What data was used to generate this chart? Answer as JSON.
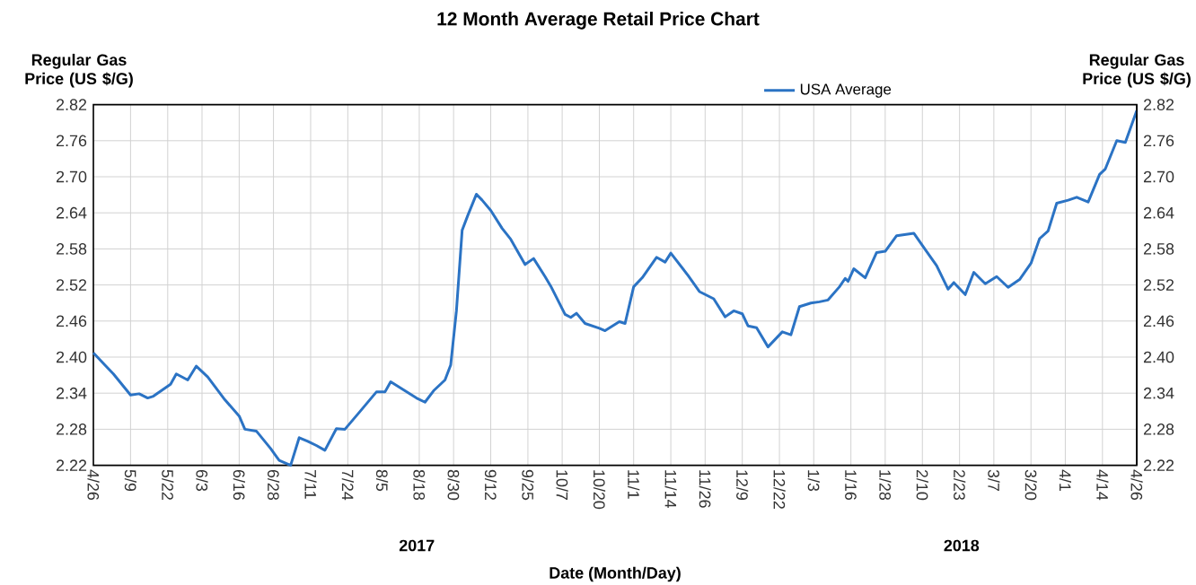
{
  "chart_data": {
    "type": "line",
    "title": "12 Month Average Retail Price Chart",
    "xlabel": "Date (Month/Day)",
    "ylabel": "Regular Gas Price (US $/G)",
    "y2label": "Regular Gas Price (US $/G)",
    "annotations": [
      "2017",
      "2018"
    ],
    "x": [
      "2017-04-26",
      "2017-04-30",
      "2017-05-03",
      "2017-05-09",
      "2017-05-12",
      "2017-05-15",
      "2017-05-17",
      "2017-05-23",
      "2017-05-25",
      "2017-05-29",
      "2017-06-01",
      "2017-06-05",
      "2017-06-11",
      "2017-06-16",
      "2017-06-18",
      "2017-06-22",
      "2017-06-27",
      "2017-06-30",
      "2017-07-04",
      "2017-07-07",
      "2017-07-10",
      "2017-07-13",
      "2017-07-16",
      "2017-07-20",
      "2017-07-23",
      "2017-07-28",
      "2017-08-03",
      "2017-08-06",
      "2017-08-08",
      "2017-08-17",
      "2017-08-20",
      "2017-08-23",
      "2017-08-27",
      "2017-08-29",
      "2017-08-31",
      "2017-09-02",
      "2017-09-04",
      "2017-09-07",
      "2017-09-09",
      "2017-09-12",
      "2017-09-16",
      "2017-09-19",
      "2017-09-24",
      "2017-09-27",
      "2017-10-01",
      "2017-10-03",
      "2017-10-08",
      "2017-10-10",
      "2017-10-12",
      "2017-10-15",
      "2017-10-20",
      "2017-10-22",
      "2017-10-27",
      "2017-10-29",
      "2017-11-01",
      "2017-11-04",
      "2017-11-09",
      "2017-11-12",
      "2017-11-14",
      "2017-11-20",
      "2017-11-24",
      "2017-11-29",
      "2017-12-03",
      "2017-12-06",
      "2017-12-09",
      "2017-12-11",
      "2017-12-14",
      "2017-12-18",
      "2017-12-23",
      "2017-12-26",
      "2017-12-29",
      "2018-01-02",
      "2018-01-05",
      "2018-01-08",
      "2018-01-12",
      "2018-01-14",
      "2018-01-15",
      "2018-01-17",
      "2018-01-21",
      "2018-01-25",
      "2018-01-28",
      "2018-02-01",
      "2018-02-07",
      "2018-02-11",
      "2018-02-15",
      "2018-02-19",
      "2018-02-21",
      "2018-02-25",
      "2018-02-28",
      "2018-03-04",
      "2018-03-08",
      "2018-03-12",
      "2018-03-16",
      "2018-03-20",
      "2018-03-23",
      "2018-03-26",
      "2018-03-29",
      "2018-04-02",
      "2018-04-05",
      "2018-04-09",
      "2018-04-13",
      "2018-04-15",
      "2018-04-19",
      "2018-04-22",
      "2018-04-26"
    ],
    "series": [
      {
        "name": "USA Average",
        "color": "#2b73c4",
        "values": [
          2.407,
          2.387,
          2.372,
          2.337,
          2.339,
          2.332,
          2.335,
          2.355,
          2.372,
          2.362,
          2.385,
          2.367,
          2.329,
          2.302,
          2.28,
          2.277,
          2.248,
          2.228,
          2.22,
          2.266,
          2.26,
          2.253,
          2.245,
          2.281,
          2.28,
          2.308,
          2.342,
          2.342,
          2.359,
          2.332,
          2.325,
          2.344,
          2.362,
          2.387,
          2.477,
          2.611,
          2.636,
          2.671,
          2.661,
          2.644,
          2.614,
          2.596,
          2.554,
          2.564,
          2.534,
          2.518,
          2.471,
          2.466,
          2.473,
          2.456,
          2.448,
          2.444,
          2.459,
          2.456,
          2.517,
          2.532,
          2.566,
          2.558,
          2.573,
          2.536,
          2.509,
          2.497,
          2.467,
          2.477,
          2.472,
          2.452,
          2.449,
          2.417,
          2.442,
          2.437,
          2.484,
          2.49,
          2.492,
          2.495,
          2.517,
          2.531,
          2.526,
          2.547,
          2.532,
          2.574,
          2.576,
          2.602,
          2.606,
          2.579,
          2.552,
          2.513,
          2.524,
          2.504,
          2.541,
          2.522,
          2.534,
          2.516,
          2.529,
          2.556,
          2.597,
          2.61,
          2.656,
          2.661,
          2.666,
          2.658,
          2.704,
          2.713,
          2.76,
          2.757,
          2.81
        ]
      }
    ],
    "xlim": [
      "2017-04-26",
      "2018-04-26"
    ],
    "xticks": [
      {
        "value": "2017-04-26",
        "label": "4/26"
      },
      {
        "value": "2017-05-09",
        "label": "5/9"
      },
      {
        "value": "2017-05-22",
        "label": "5/22"
      },
      {
        "value": "2017-06-03",
        "label": "6/3"
      },
      {
        "value": "2017-06-16",
        "label": "6/16"
      },
      {
        "value": "2017-06-28",
        "label": "6/28"
      },
      {
        "value": "2017-07-11",
        "label": "7/11"
      },
      {
        "value": "2017-07-24",
        "label": "7/24"
      },
      {
        "value": "2017-08-05",
        "label": "8/5"
      },
      {
        "value": "2017-08-18",
        "label": "8/18"
      },
      {
        "value": "2017-08-30",
        "label": "8/30"
      },
      {
        "value": "2017-09-12",
        "label": "9/12"
      },
      {
        "value": "2017-09-25",
        "label": "9/25"
      },
      {
        "value": "2017-10-07",
        "label": "10/7"
      },
      {
        "value": "2017-10-20",
        "label": "10/20"
      },
      {
        "value": "2017-11-01",
        "label": "11/1"
      },
      {
        "value": "2017-11-14",
        "label": "11/14"
      },
      {
        "value": "2017-11-26",
        "label": "11/26"
      },
      {
        "value": "2017-12-09",
        "label": "12/9"
      },
      {
        "value": "2017-12-22",
        "label": "12/22"
      },
      {
        "value": "2018-01-03",
        "label": "1/3"
      },
      {
        "value": "2018-01-16",
        "label": "1/16"
      },
      {
        "value": "2018-01-28",
        "label": "1/28"
      },
      {
        "value": "2018-02-10",
        "label": "2/10"
      },
      {
        "value": "2018-02-23",
        "label": "2/23"
      },
      {
        "value": "2018-03-07",
        "label": "3/7"
      },
      {
        "value": "2018-03-20",
        "label": "3/20"
      },
      {
        "value": "2018-04-01",
        "label": "4/1"
      },
      {
        "value": "2018-04-14",
        "label": "4/14"
      },
      {
        "value": "2018-04-26",
        "label": "4/26"
      }
    ],
    "ylim": [
      2.22,
      2.82
    ],
    "yticks": [
      2.22,
      2.28,
      2.34,
      {
        "value": 2.4,
        "label": "2.40"
      },
      2.46,
      2.52,
      2.58,
      2.64,
      {
        "value": 2.7,
        "label": "2.70"
      },
      2.76,
      2.82
    ],
    "y2lim": [
      2.22,
      2.82
    ],
    "y2ticks": [
      2.22,
      2.28,
      2.34,
      {
        "value": 2.4,
        "label": "2.40"
      },
      2.46,
      2.52,
      2.58,
      2.64,
      {
        "value": 2.7,
        "label": "2.70"
      },
      2.76,
      2.82
    ],
    "grid": true,
    "legend": "top right",
    "marker": "none",
    "line_style": "solid"
  }
}
